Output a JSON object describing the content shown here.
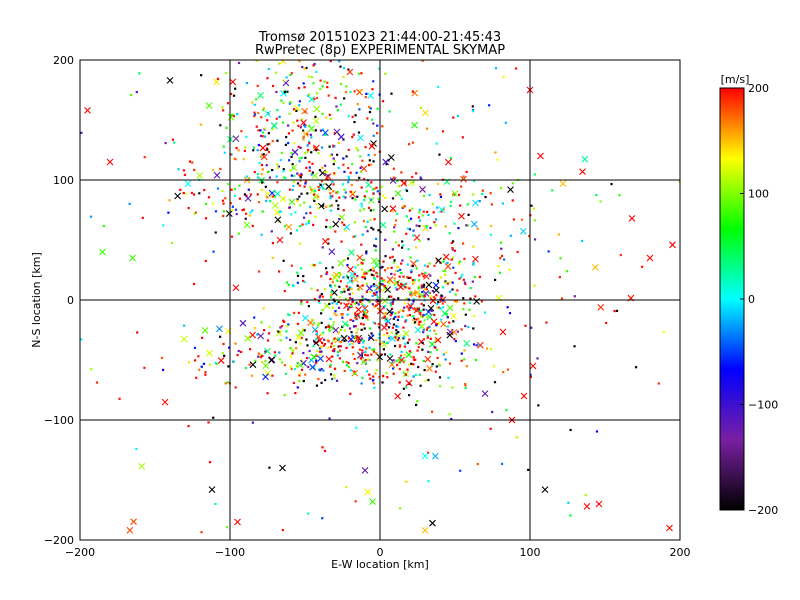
{
  "chart_data": {
    "type": "scatter",
    "title": "Tromsø 20151023 21:44:00-21:45:43",
    "subtitle": "RwPretec (8p) EXPERIMENTAL SKYMAP",
    "xlabel": "E-W location [km]",
    "ylabel": "N-S location [km]",
    "xlim": [
      -200,
      200
    ],
    "ylim": [
      -200,
      200
    ],
    "xticks": [
      -200,
      -100,
      0,
      100,
      200
    ],
    "yticks": [
      -200,
      -100,
      0,
      100,
      200
    ],
    "grid": true,
    "colorbar": {
      "label": "[m/s]",
      "min": -200,
      "max": 200,
      "ticks": [
        200,
        100,
        0,
        -100,
        -200
      ],
      "colormap": [
        "#000000",
        "#7a1fa2",
        "#0000ff",
        "#00ffff",
        "#00ff00",
        "#ffff00",
        "#ff0000"
      ]
    },
    "marker_types": [
      "dot",
      "cross"
    ],
    "clusters": [
      {
        "x": -45,
        "y": 135,
        "sx": 38,
        "sy": 35,
        "n": 420
      },
      {
        "x": -25,
        "y": 85,
        "sx": 55,
        "sy": 18,
        "n": 260
      },
      {
        "x": 0,
        "y": 0,
        "sx": 30,
        "sy": 20,
        "n": 520
      },
      {
        "x": -20,
        "y": -45,
        "sx": 45,
        "sy": 15,
        "n": 380
      },
      {
        "x": 25,
        "y": 40,
        "sx": 35,
        "sy": 30,
        "n": 150
      },
      {
        "x": 0,
        "y": 0,
        "sx": 120,
        "sy": 120,
        "n": 230
      }
    ],
    "sample_points": [
      {
        "x": -140,
        "y": 183,
        "v": -200,
        "m": "cross"
      },
      {
        "x": -180,
        "y": 115,
        "v": 200,
        "m": "cross"
      },
      {
        "x": -195,
        "y": 158,
        "v": 200,
        "m": "cross"
      },
      {
        "x": -185,
        "y": 40,
        "v": 80,
        "m": "cross"
      },
      {
        "x": -165,
        "y": 35,
        "v": 80,
        "m": "cross"
      },
      {
        "x": -128,
        "y": 97,
        "v": 0,
        "m": "cross"
      },
      {
        "x": -112,
        "y": -158,
        "v": -200,
        "m": "cross"
      },
      {
        "x": -95,
        "y": -185,
        "v": 200,
        "m": "cross"
      },
      {
        "x": -65,
        "y": -140,
        "v": -200,
        "m": "cross"
      },
      {
        "x": -10,
        "y": -142,
        "v": -120,
        "m": "cross"
      },
      {
        "x": -5,
        "y": -168,
        "v": 80,
        "m": "cross"
      },
      {
        "x": 35,
        "y": -186,
        "v": -200,
        "m": "cross"
      },
      {
        "x": 30,
        "y": -192,
        "v": 150,
        "m": "cross"
      },
      {
        "x": 30,
        "y": -130,
        "v": 0,
        "m": "cross"
      },
      {
        "x": 100,
        "y": 175,
        "v": 200,
        "m": "cross"
      },
      {
        "x": 107,
        "y": 120,
        "v": 200,
        "m": "cross"
      },
      {
        "x": 87,
        "y": 92,
        "v": -200,
        "m": "cross"
      },
      {
        "x": 122,
        "y": 97,
        "v": 150,
        "m": "cross"
      },
      {
        "x": 135,
        "y": 107,
        "v": 200,
        "m": "cross"
      },
      {
        "x": 168,
        "y": 68,
        "v": 200,
        "m": "cross"
      },
      {
        "x": 195,
        "y": 46,
        "v": 200,
        "m": "cross"
      },
      {
        "x": 180,
        "y": 35,
        "v": 200,
        "m": "cross"
      },
      {
        "x": 102,
        "y": -55,
        "v": 200,
        "m": "cross"
      },
      {
        "x": 96,
        "y": -80,
        "v": 200,
        "m": "cross"
      },
      {
        "x": 110,
        "y": -158,
        "v": -200,
        "m": "cross"
      },
      {
        "x": 138,
        "y": -172,
        "v": 200,
        "m": "cross"
      },
      {
        "x": 146,
        "y": -170,
        "v": 200,
        "m": "cross"
      },
      {
        "x": 193,
        "y": -190,
        "v": 200,
        "m": "cross"
      },
      {
        "x": 88,
        "y": -100,
        "v": 200,
        "m": "cross"
      },
      {
        "x": 70,
        "y": -78,
        "v": -120,
        "m": "cross"
      }
    ]
  }
}
